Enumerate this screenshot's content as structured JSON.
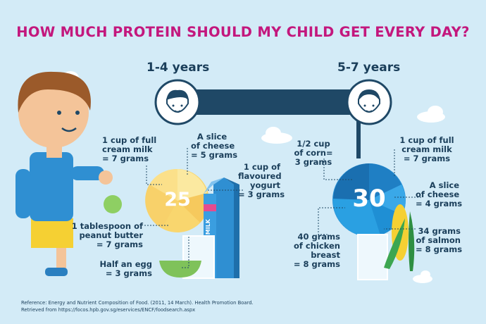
{
  "title": "HOW MUCH PROTEIN SHOULD MY CHILD GET EVERY DAY?",
  "groups": [
    {
      "age": "1-4 years",
      "total": "25",
      "items": {
        "milk": [
          "1 cup of full",
          "cream milk",
          "= 7 grams"
        ],
        "cheese": [
          "A slice",
          "of cheese",
          "= 5 grams"
        ],
        "yogurt": [
          "1 cup of",
          "flavoured",
          "yogurt",
          "= 3 grams"
        ],
        "peanut": [
          "1 tablespoon of",
          "peanut butter",
          "= 7 grams"
        ],
        "egg": [
          "Half an egg",
          "= 3 grams"
        ]
      },
      "carton_label": "MILK"
    },
    {
      "age": "5-7 years",
      "total": "30",
      "items": {
        "corn": [
          "1/2 cup",
          "of corn=",
          "3 grams"
        ],
        "milk": [
          "1 cup of full",
          "cream milk",
          "= 7 grams"
        ],
        "cheese": [
          "A slice",
          "of cheese",
          "= 4 grams"
        ],
        "salmon": [
          "34 grams",
          "of salmon",
          "= 8 grams"
        ],
        "chicken": [
          "40 grams",
          "of chicken",
          "breast",
          "= 8 grams"
        ]
      }
    }
  ],
  "reference": [
    "Reference: Energy and Nutrient Composition of Food. (2011, 14 March). Health Promotion Board.",
    "Retrieved from https://focos.hpb.gov.sg/eservices/ENCF/foodsearch.aspx"
  ]
}
